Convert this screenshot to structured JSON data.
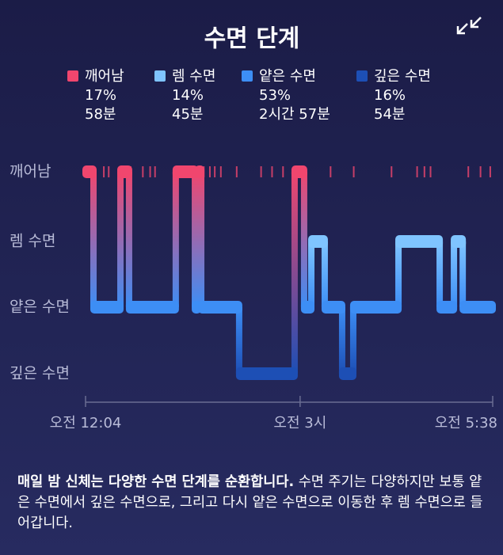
{
  "chart_data": {
    "type": "hypnogram",
    "title": "수면 단계",
    "series": [
      {
        "name": "깨어남",
        "color": "#f0466e",
        "values": [
          17
        ],
        "value_labels": [
          "17%"
        ],
        "duration": "58분"
      },
      {
        "name": "렘 수면",
        "color": "#7fc4ff",
        "values": [
          14
        ],
        "value_labels": [
          "14%"
        ],
        "duration": "45분"
      },
      {
        "name": "얕은 수면",
        "color": "#3d8ef5",
        "values": [
          53
        ],
        "value_labels": [
          "53%"
        ],
        "duration": "2시간 57분"
      },
      {
        "name": "깊은 수면",
        "color": "#1d4fb5",
        "values": [
          16
        ],
        "value_labels": [
          "16%"
        ],
        "duration": "54분"
      }
    ],
    "xlim": [
      0,
      334
    ],
    "xticks": [
      {
        "value": 0,
        "label": "오전 12:04"
      },
      {
        "value": 176,
        "label": "오전 3시"
      },
      {
        "value": 334,
        "label": "오전 5:38"
      }
    ],
    "segments": [
      {
        "stage": "깨어남",
        "start": 0,
        "end": 6.5
      },
      {
        "stage": "얕은 수면",
        "start": 6.5,
        "end": 28.6
      },
      {
        "stage": "깨어남",
        "start": 28.6,
        "end": 35.7
      },
      {
        "stage": "얕은 수면",
        "start": 35.7,
        "end": 74
      },
      {
        "stage": "깨어남",
        "start": 74,
        "end": 89.7
      },
      {
        "stage": "얕은 수면",
        "start": 89.7,
        "end": 92.3
      },
      {
        "stage": "깨어남",
        "start": 92.3,
        "end": 94.9
      },
      {
        "stage": "얕은 수면",
        "start": 94.9,
        "end": 126
      },
      {
        "stage": "깊은 수면",
        "start": 126,
        "end": 171.5
      },
      {
        "stage": "깨어남",
        "start": 171.5,
        "end": 179.3
      },
      {
        "stage": "얕은 수면",
        "start": 179.3,
        "end": 185.2
      },
      {
        "stage": "렘 수면",
        "start": 185.2,
        "end": 196.2
      },
      {
        "stage": "얕은 수면",
        "start": 196.2,
        "end": 210.5
      },
      {
        "stage": "깊은 수면",
        "start": 210.5,
        "end": 219.6
      },
      {
        "stage": "얕은 수면",
        "start": 219.6,
        "end": 256.7
      },
      {
        "stage": "렘 수면",
        "start": 256.7,
        "end": 290.5
      },
      {
        "stage": "얕은 수면",
        "start": 290.5,
        "end": 302.2
      },
      {
        "stage": "렘 수면",
        "start": 302.2,
        "end": 309.4
      },
      {
        "stage": "얕은 수면",
        "start": 309.4,
        "end": 334
      }
    ],
    "brief_wakes": [
      15,
      19,
      37,
      47,
      53,
      57,
      97,
      102,
      106,
      111,
      124,
      144,
      153,
      162,
      201,
      220,
      251,
      272,
      278,
      283,
      314,
      324,
      332
    ],
    "description_bold": "매일 밤 신체는 다양한 수면 단계를 순환합니다.",
    "description": "수면 주기는 다양하지만 보통 얕은 수면에서 깊은 수면으로, 그리고 다시 얕은 수면으로 이동한 후 렘 수면으로 들어갑니다."
  }
}
